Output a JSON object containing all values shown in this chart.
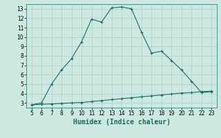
{
  "xlabel": "Humidex (Indice chaleur)",
  "bg_color": "#cce8e0",
  "grid_color": "#aacfc8",
  "line_color": "#1a6b5a",
  "x_curve1": [
    5,
    6,
    7,
    8,
    9,
    10,
    11,
    12,
    13,
    14,
    15,
    16,
    17,
    18,
    19,
    20,
    21,
    22,
    23
  ],
  "y_curve1": [
    2.8,
    3.0,
    5.0,
    6.5,
    7.7,
    9.5,
    11.9,
    11.6,
    13.1,
    13.2,
    13.0,
    10.5,
    8.3,
    8.5,
    7.5,
    6.5,
    5.3,
    4.1,
    4.2
  ],
  "x_curve2": [
    5,
    6,
    7,
    8,
    9,
    10,
    11,
    12,
    13,
    14,
    15,
    16,
    17,
    18,
    19,
    20,
    21,
    22,
    23
  ],
  "y_curve2": [
    2.8,
    2.85,
    2.9,
    2.95,
    3.0,
    3.05,
    3.15,
    3.25,
    3.35,
    3.45,
    3.55,
    3.65,
    3.75,
    3.85,
    3.95,
    4.05,
    4.1,
    4.2,
    4.25
  ],
  "xlim": [
    4.5,
    23.5
  ],
  "ylim": [
    2.5,
    13.5
  ],
  "yticks": [
    3,
    4,
    5,
    6,
    7,
    8,
    9,
    10,
    11,
    12,
    13
  ],
  "xticks": [
    5,
    6,
    7,
    8,
    9,
    10,
    11,
    12,
    13,
    14,
    15,
    16,
    17,
    18,
    19,
    20,
    21,
    22,
    23
  ],
  "xlabel_fontsize": 7,
  "tick_fontsize": 5.5
}
